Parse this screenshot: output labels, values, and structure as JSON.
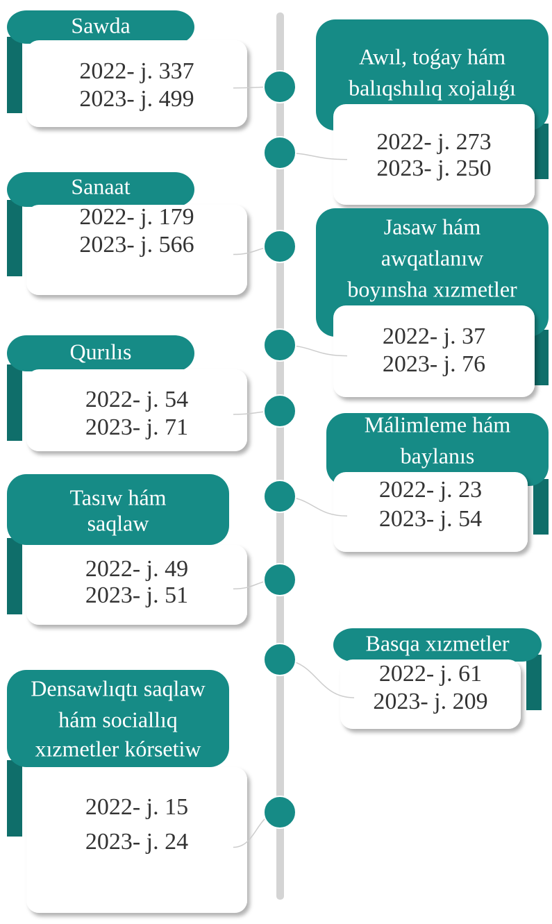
{
  "items": [
    {
      "title_lines": [
        "Sawda"
      ],
      "lines": [
        "2022- j. 337",
        "2023- j. 499"
      ]
    },
    {
      "title_lines": [
        "Awıl, toǵay hám",
        "balıqshılıq xojalıǵı"
      ],
      "lines": [
        "2022- j. 273",
        "2023- j. 250"
      ]
    },
    {
      "title_lines": [
        "Sanaat"
      ],
      "lines": [
        "2022- j. 179",
        "2023- j. 566"
      ]
    },
    {
      "title_lines": [
        "Jasaw hám",
        "awqatlanıw",
        "boyınsha xızmetler"
      ],
      "lines": [
        "2022- j. 37",
        "2023- j. 76"
      ]
    },
    {
      "title_lines": [
        "Qurılıs"
      ],
      "lines": [
        "2022- j. 54",
        "2023- j. 71"
      ]
    },
    {
      "title_lines": [
        "Málimleme hám",
        "baylanıs"
      ],
      "lines": [
        "2022- j. 23",
        "2023- j. 54"
      ]
    },
    {
      "title_lines": [
        "Tasıw hám",
        "saqlaw"
      ],
      "lines": [
        "2022- j. 49",
        "2023- j. 51"
      ]
    },
    {
      "title_lines": [
        "Basqa xızmetler"
      ],
      "lines": [
        "2022- j. 61",
        "2023- j. 209"
      ]
    },
    {
      "title_lines": [
        "Densawlıqtı saqlaw",
        "hám sociallıq",
        "xızmetler kórsetiw"
      ],
      "lines": [
        "2022- j. 15",
        "2023- j. 24"
      ]
    }
  ]
}
